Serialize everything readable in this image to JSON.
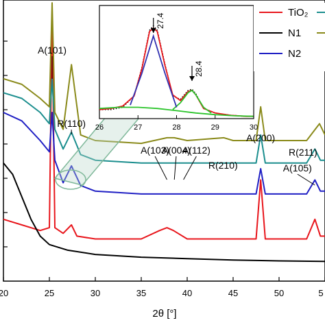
{
  "chart_data": [
    {
      "type": "line",
      "xlabel": "2θ [°]",
      "ylabel": "",
      "xlim": [
        20,
        55
      ],
      "x_ticks": [
        "20",
        "25",
        "30",
        "35",
        "40",
        "45",
        "50",
        "5"
      ],
      "grid": false,
      "legend": "top-right",
      "series": [
        {
          "name": "TiO₂",
          "color": "#e8151b",
          "x": [
            20,
            22,
            24,
            25,
            25.3,
            25.6,
            26.5,
            27.4,
            28,
            30,
            35,
            37,
            37.8,
            38.5,
            40,
            45,
            47.5,
            48,
            48.5,
            50,
            53,
            53.9,
            54.5,
            55
          ],
          "y": [
            0.22,
            0.2,
            0.18,
            0.19,
            0.93,
            0.19,
            0.17,
            0.2,
            0.16,
            0.15,
            0.15,
            0.18,
            0.19,
            0.18,
            0.15,
            0.15,
            0.15,
            0.36,
            0.15,
            0.15,
            0.15,
            0.22,
            0.16,
            0.16
          ]
        },
        {
          "name": "N1",
          "color": "#000000",
          "x": [
            20,
            21,
            22,
            23,
            24,
            25,
            27,
            30,
            35,
            40,
            45,
            50,
            55
          ],
          "y": [
            0.42,
            0.38,
            0.3,
            0.22,
            0.16,
            0.13,
            0.11,
            0.095,
            0.085,
            0.08,
            0.075,
            0.072,
            0.07
          ]
        },
        {
          "name": "N2",
          "color": "#1f1fc4",
          "x": [
            20,
            22,
            24,
            25,
            25.3,
            25.6,
            26.5,
            27.4,
            28.4,
            30,
            35,
            37.8,
            40,
            45,
            47.5,
            48,
            48.5,
            50,
            53,
            53.9,
            54.5,
            55
          ],
          "y": [
            0.6,
            0.57,
            0.5,
            0.46,
            0.6,
            0.43,
            0.35,
            0.41,
            0.34,
            0.32,
            0.31,
            0.31,
            0.31,
            0.31,
            0.31,
            0.4,
            0.31,
            0.31,
            0.31,
            0.36,
            0.32,
            0.32
          ]
        },
        {
          "name": "",
          "color": "#1b8e8e",
          "x": [
            20,
            22,
            24,
            25,
            25.3,
            25.6,
            26.5,
            27.4,
            28.4,
            30,
            35,
            37.8,
            40,
            45,
            47.5,
            48,
            48.5,
            50,
            53,
            53.9,
            54.5,
            55
          ],
          "y": [
            0.67,
            0.65,
            0.6,
            0.56,
            0.72,
            0.54,
            0.47,
            0.53,
            0.45,
            0.43,
            0.42,
            0.42,
            0.42,
            0.42,
            0.42,
            0.52,
            0.42,
            0.42,
            0.42,
            0.47,
            0.43,
            0.43
          ]
        },
        {
          "name": "",
          "color": "#8a8a1a",
          "x": [
            20,
            22,
            24,
            25,
            25.3,
            25.6,
            26.5,
            27.4,
            28.4,
            30,
            35,
            37.8,
            38.6,
            40,
            44,
            45,
            47.5,
            48,
            48.5,
            50,
            53,
            54.4,
            55
          ],
          "y": [
            0.72,
            0.7,
            0.65,
            0.62,
            0.99,
            0.6,
            0.54,
            0.77,
            0.52,
            0.5,
            0.49,
            0.51,
            0.51,
            0.5,
            0.51,
            0.5,
            0.5,
            0.62,
            0.5,
            0.5,
            0.5,
            0.56,
            0.52
          ]
        }
      ],
      "annotations": [
        "A(101)",
        "R(110)",
        "A(103)",
        "A(004)",
        "A(112)",
        "R(210)",
        "A(200)",
        "R(211)",
        "A(105)"
      ]
    },
    {
      "type": "line",
      "xlim": [
        26,
        30
      ],
      "x_ticks": [
        "26",
        "27",
        "28",
        "29",
        "30"
      ],
      "annotations": [
        "27.4",
        "28.4"
      ],
      "series": [
        {
          "name": "",
          "color": "#000000",
          "style": "dotted",
          "x": [
            26,
            26.3,
            26.6,
            26.9,
            27.1,
            27.3,
            27.4,
            27.5,
            27.7,
            27.9,
            28.1,
            28.3,
            28.4,
            28.5,
            28.7,
            29,
            29.4,
            29.8,
            30
          ],
          "y": [
            0.08,
            0.08,
            0.1,
            0.2,
            0.45,
            0.78,
            0.82,
            0.78,
            0.48,
            0.2,
            0.17,
            0.25,
            0.26,
            0.22,
            0.09,
            0.05,
            0.03,
            0.02,
            0.02
          ]
        },
        {
          "name": "",
          "color": "#e8151b",
          "x": [
            26,
            26.3,
            26.6,
            26.9,
            27.1,
            27.3,
            27.4,
            27.5,
            27.7,
            27.9,
            28.1,
            28.3,
            28.4,
            28.5,
            28.7,
            29,
            29.4,
            29.8,
            30
          ],
          "y": [
            0.08,
            0.09,
            0.11,
            0.2,
            0.44,
            0.77,
            0.8,
            0.77,
            0.47,
            0.21,
            0.16,
            0.24,
            0.25,
            0.21,
            0.09,
            0.05,
            0.03,
            0.02,
            0.02
          ]
        },
        {
          "name": "",
          "color": "#2bc42b",
          "x": [
            26,
            26.5,
            27,
            27.5,
            28,
            28.5,
            29,
            29.5,
            30
          ],
          "y": [
            0.09,
            0.1,
            0.1,
            0.09,
            0.07,
            0.05,
            0.035,
            0.025,
            0.02
          ]
        },
        {
          "name": "",
          "color": "#2bc42b",
          "x": [
            27.9,
            28.1,
            28.3,
            28.4,
            28.5,
            28.7,
            28.9
          ],
          "y": [
            0.08,
            0.14,
            0.23,
            0.25,
            0.21,
            0.1,
            0.05
          ]
        },
        {
          "name": "",
          "color": "#2f2fb0",
          "x": [
            26.8,
            27.1,
            27.4,
            27.7,
            28.0
          ],
          "y": [
            0.12,
            0.4,
            0.73,
            0.4,
            0.1
          ]
        }
      ]
    }
  ],
  "legend": {
    "items": [
      {
        "label": "TiO₂",
        "color": "#e8151b"
      },
      {
        "label": "N1",
        "color": "#000000"
      },
      {
        "label": "N2",
        "color": "#1f1fc4"
      }
    ],
    "extra_colors": [
      "#1b8e8e",
      "#8a8a1a"
    ]
  }
}
